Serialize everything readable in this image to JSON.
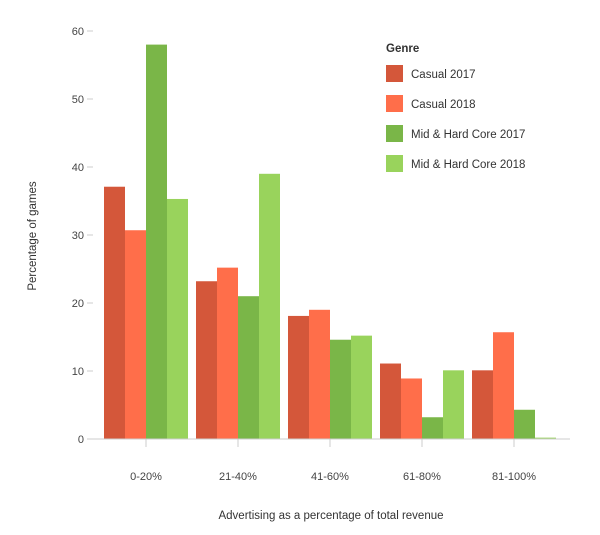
{
  "chart_data": {
    "type": "bar",
    "title": "",
    "xlabel": "Advertising as a percentage of total revenue",
    "ylabel": "Percentage of games",
    "categories": [
      "0-20%",
      "21-40%",
      "41-60%",
      "61-80%",
      "81-100%"
    ],
    "yticks": [
      0,
      10,
      20,
      30,
      40,
      50,
      60
    ],
    "ylim": [
      0,
      60
    ],
    "grid": false,
    "legend": {
      "title": "Genre",
      "placement": "top-right"
    },
    "series": [
      {
        "name": "Casual 2017",
        "color": "#d4573a",
        "values": [
          37.1,
          23.2,
          18.1,
          11.1,
          10.1
        ]
      },
      {
        "name": "Casual 2018",
        "color": "#ff6e4a",
        "values": [
          30.7,
          25.2,
          19.0,
          8.9,
          15.7
        ]
      },
      {
        "name": "Mid & Hard Core 2017",
        "color": "#7ab648",
        "values": [
          58.0,
          21.0,
          14.6,
          3.2,
          4.3
        ]
      },
      {
        "name": "Mid & Hard Core 2018",
        "color": "#99d35c",
        "values": [
          35.3,
          39.0,
          15.2,
          10.1,
          0.2
        ]
      }
    ]
  }
}
